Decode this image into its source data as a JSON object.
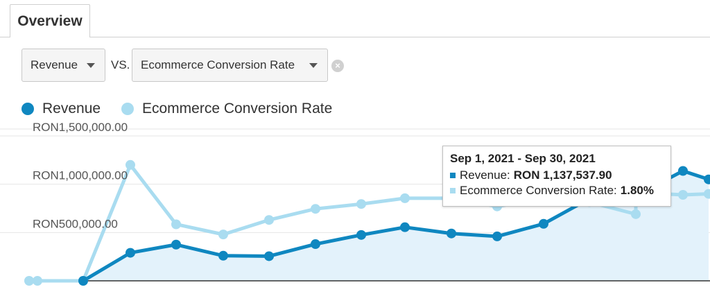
{
  "tabs": {
    "active_label": "Overview"
  },
  "metric_selectors": {
    "primary": "Revenue",
    "vs_label": "VS.",
    "secondary": "Ecommerce Conversion Rate",
    "clear_symbol": "×"
  },
  "legend": {
    "series1": "Revenue",
    "series2": "Ecommerce Conversion Rate"
  },
  "colors": {
    "revenue": "#0f87c0",
    "conversion": "#a9dcf0",
    "area_fill": "#e3f2fb",
    "grid": "#e6e6e6",
    "axis": "#333333"
  },
  "tooltip": {
    "title": "Sep 1, 2021 - Sep 30, 2021",
    "row1_label": "Revenue:",
    "row1_value": "RON 1,137,537.90",
    "row2_label": "Ecommerce Conversion Rate:",
    "row2_value": "1.80%"
  },
  "chart_data": {
    "type": "line",
    "y_tick_labels": [
      "RON500,000.00",
      "RON1,000,000.00",
      "RON1,500,000.00"
    ],
    "y_tick_values": [
      500000,
      1000000,
      1500000
    ],
    "ylim": [
      0,
      1500000
    ],
    "grid": true,
    "series": [
      {
        "name": "Revenue",
        "values": [
          0,
          0,
          0,
          290000,
          375000,
          260000,
          255000,
          380000,
          475000,
          555000,
          490000,
          460000,
          590000,
          850000,
          860000,
          880000,
          1137537.9,
          1050000
        ]
      },
      {
        "name": "Ecommerce Conversion Rate",
        "values": [
          0,
          0,
          0,
          1200000,
          585000,
          480000,
          630000,
          745000,
          795000,
          855000,
          855000,
          770000,
          850000,
          815000,
          690000,
          915000,
          890000,
          900000
        ]
      }
    ]
  }
}
